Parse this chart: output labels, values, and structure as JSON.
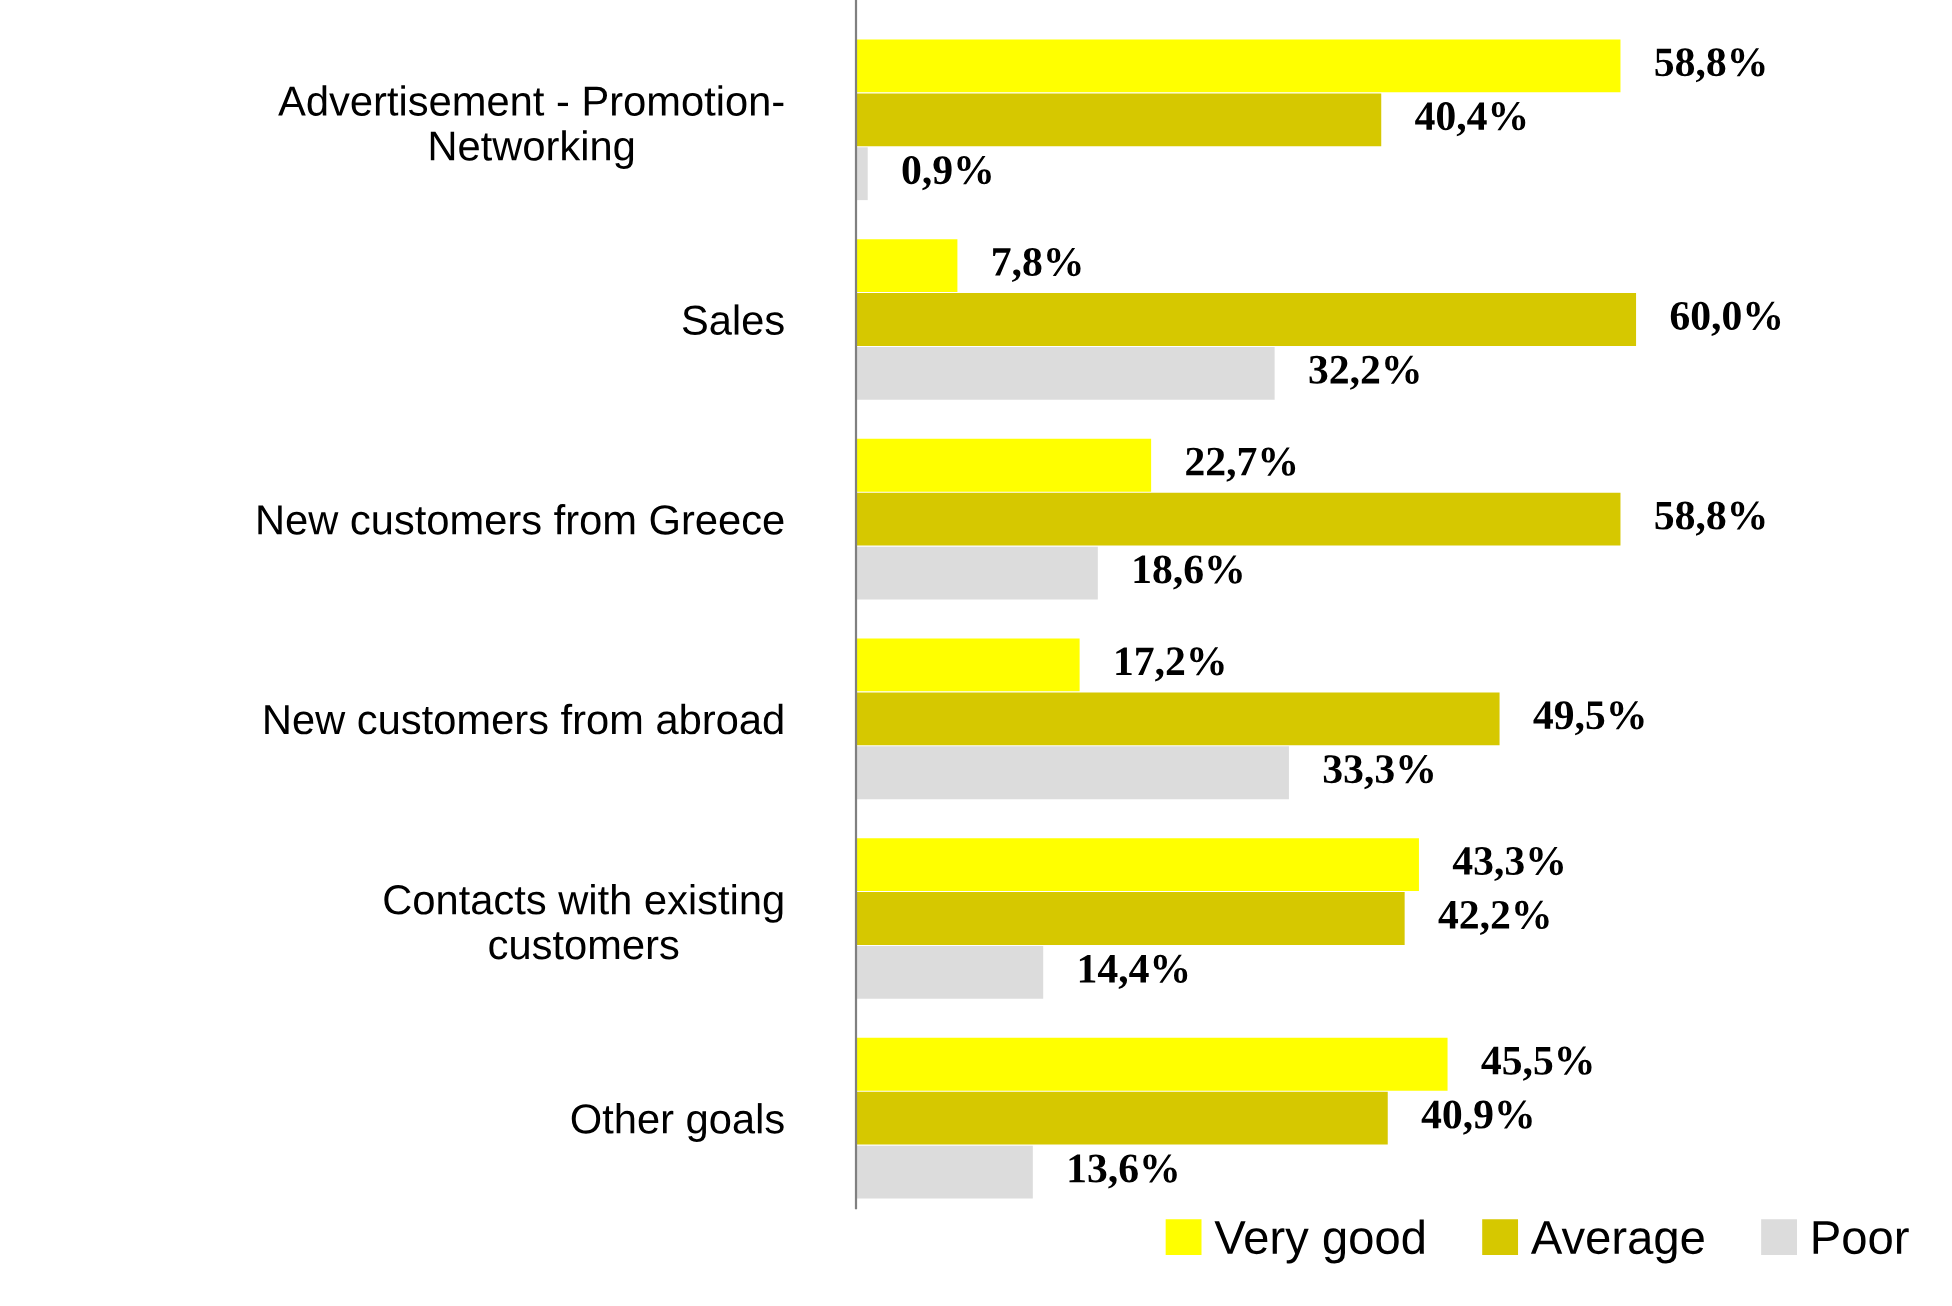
{
  "chart_data": {
    "type": "bar",
    "orientation": "horizontal",
    "categories": [
      "Advertisement - Promotion-\nNetworking",
      "Sales",
      "New customers from Greece",
      "New customers from abroad",
      "Contacts with existing\ncustomers",
      "Other goals"
    ],
    "series": [
      {
        "name": "Very good",
        "color": "#ffff00",
        "values": [
          58.8,
          7.8,
          22.7,
          17.2,
          43.3,
          45.5
        ],
        "value_labels": [
          "58,8%",
          "7,8%",
          "22,7%",
          "17,2%",
          "43,3%",
          "45,5%"
        ]
      },
      {
        "name": "Average",
        "color": "#d6c800",
        "values": [
          40.4,
          60.0,
          58.8,
          49.5,
          42.2,
          40.9
        ],
        "value_labels": [
          "40,4%",
          "60,0%",
          "58,8%",
          "49,5%",
          "42,2%",
          "40,9%"
        ]
      },
      {
        "name": "Poor",
        "color": "#dcdcdc",
        "values": [
          0.9,
          32.2,
          18.6,
          33.3,
          14.4,
          13.6
        ],
        "value_labels": [
          "0,9%",
          "32,2%",
          "18,6%",
          "33,3%",
          "14,4%",
          "13,6%"
        ]
      }
    ],
    "tick_labels": "y",
    "grid": false,
    "legend": "bottom right"
  }
}
